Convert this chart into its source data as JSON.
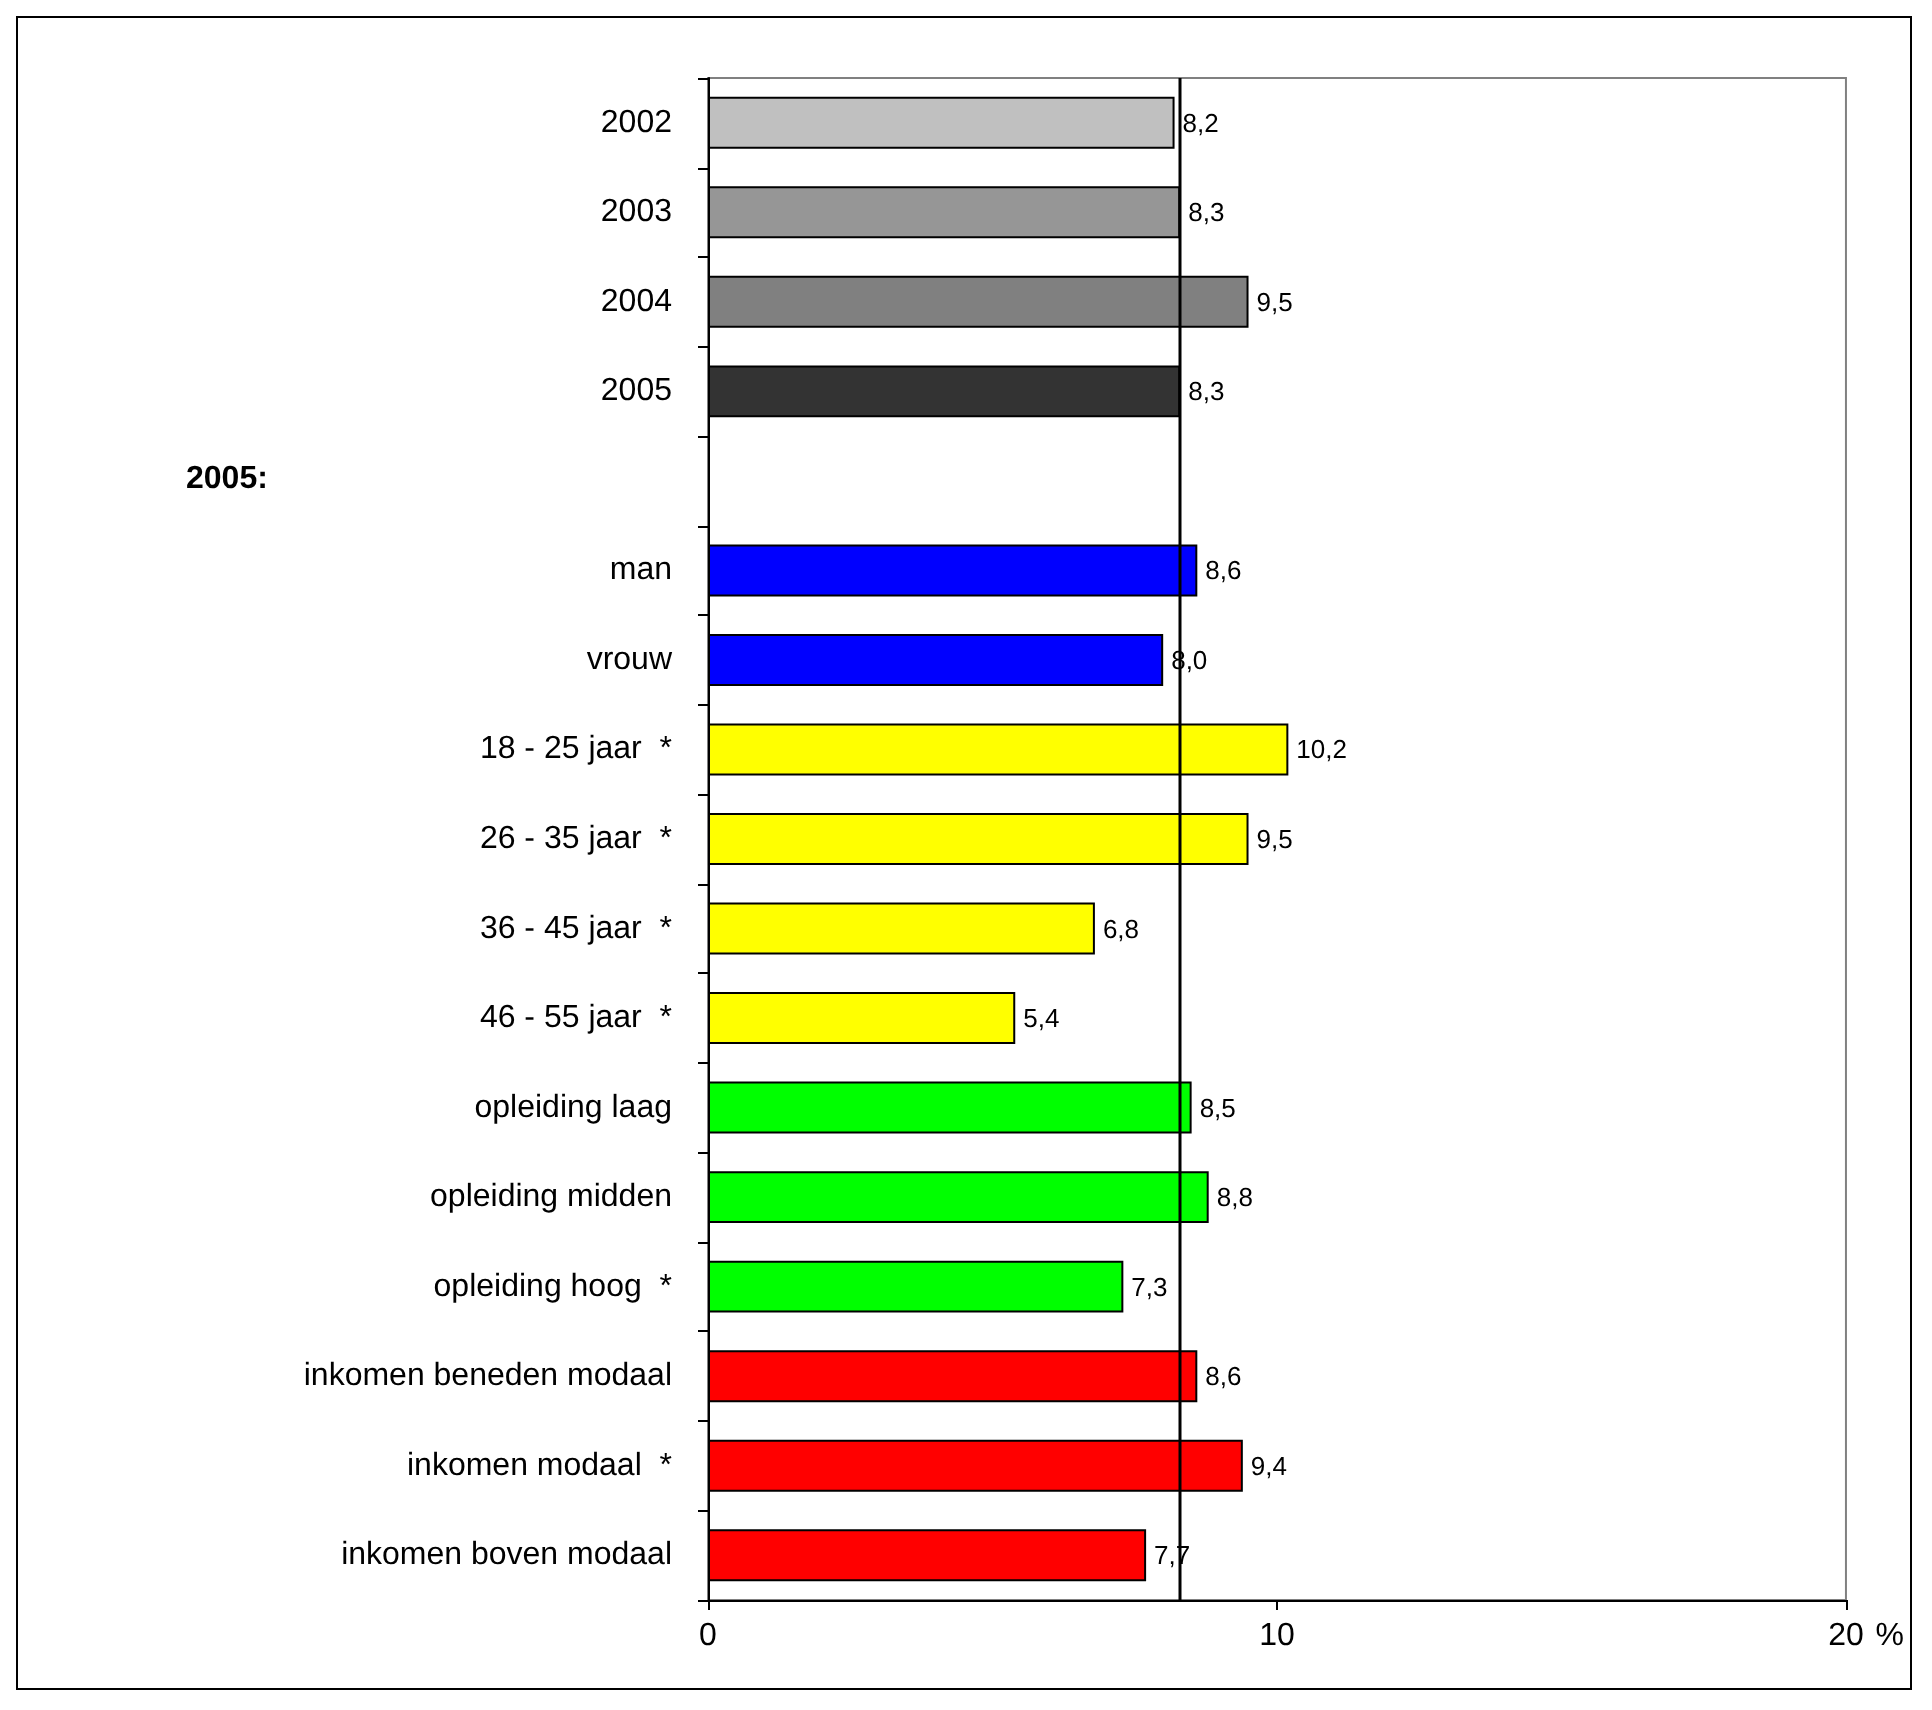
{
  "chart_data": {
    "type": "bar",
    "orientation": "horizontal",
    "categories": [
      "2002",
      "2003",
      "2004",
      "2005",
      null,
      "man",
      "vrouw",
      "18 - 25 jaar  *",
      "26 - 35 jaar  *",
      "36 - 45 jaar  *",
      "46 - 55 jaar  *",
      "opleiding laag",
      "opleiding midden",
      "opleiding hoog  *",
      "inkomen beneden modaal",
      "inkomen modaal  *",
      "inkomen boven modaal"
    ],
    "values": [
      8.2,
      8.3,
      9.5,
      8.3,
      null,
      8.6,
      8.0,
      10.2,
      9.5,
      6.8,
      5.4,
      8.5,
      8.8,
      7.3,
      8.6,
      9.4,
      7.7
    ],
    "value_labels": [
      "8,2",
      "8,3",
      "9,5",
      "8,3",
      null,
      "8,6",
      "8,0",
      "10,2",
      "9,5",
      "6,8",
      "5,4",
      "8,5",
      "8,8",
      "7,3",
      "8,6",
      "9,4",
      "7,7"
    ],
    "colors": [
      "#c0c0c0",
      "#969696",
      "#808080",
      "#333333",
      null,
      "#0000ff",
      "#0000ff",
      "#ffff00",
      "#ffff00",
      "#ffff00",
      "#ffff00",
      "#00ff00",
      "#00ff00",
      "#00ff00",
      "#ff0000",
      "#ff0000",
      "#ff0000"
    ],
    "xlabel": "%",
    "xlim": [
      0,
      20
    ],
    "xticks": [
      0,
      10,
      20
    ],
    "ref_lines": [
      {
        "axis": "x",
        "value": 8.3,
        "label": null,
        "color": "#000000"
      }
    ],
    "annotations": [
      "2005:"
    ],
    "grid": false
  }
}
